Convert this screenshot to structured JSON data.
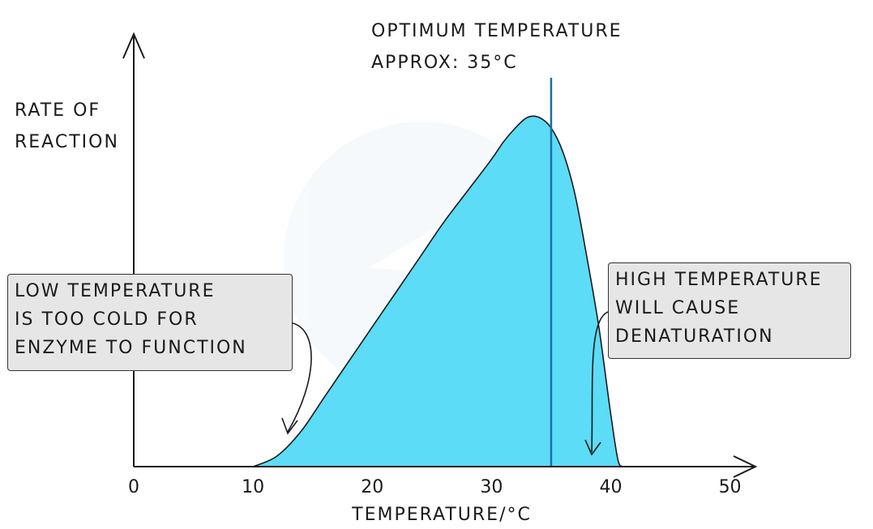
{
  "chart_data": {
    "type": "area",
    "xlabel": "TEMPERATURE/°C",
    "ylabel": [
      "RATE OF",
      "REACTION"
    ],
    "xlim": [
      0,
      52
    ],
    "ylim": [
      0,
      1
    ],
    "xticks": [
      0,
      10,
      20,
      30,
      40,
      50
    ],
    "x": [
      10,
      12,
      14,
      16,
      18,
      20,
      22,
      24,
      26,
      28,
      30,
      31,
      32,
      33,
      34,
      35,
      36,
      37,
      38,
      39,
      40,
      40.6,
      41
    ],
    "y": [
      0,
      0.03,
      0.1,
      0.2,
      0.3,
      0.4,
      0.5,
      0.6,
      0.7,
      0.79,
      0.88,
      0.93,
      0.97,
      1.0,
      1.0,
      0.97,
      0.9,
      0.78,
      0.6,
      0.4,
      0.15,
      0.02,
      0
    ],
    "optimum_x": 35,
    "fill_color": "#5cdcf6",
    "line_color": "#1a6fa8",
    "annotations": {
      "optimum": [
        "OPTIMUM TEMPERATURE",
        "APPROX: 35°C"
      ],
      "low": [
        "LOW TEMPERATURE",
        "IS TOO COLD FOR",
        "ENZYME TO FUNCTION"
      ],
      "high": [
        "HIGH TEMPERATURE",
        "WILL CAUSE",
        "DENATURATION"
      ]
    }
  }
}
